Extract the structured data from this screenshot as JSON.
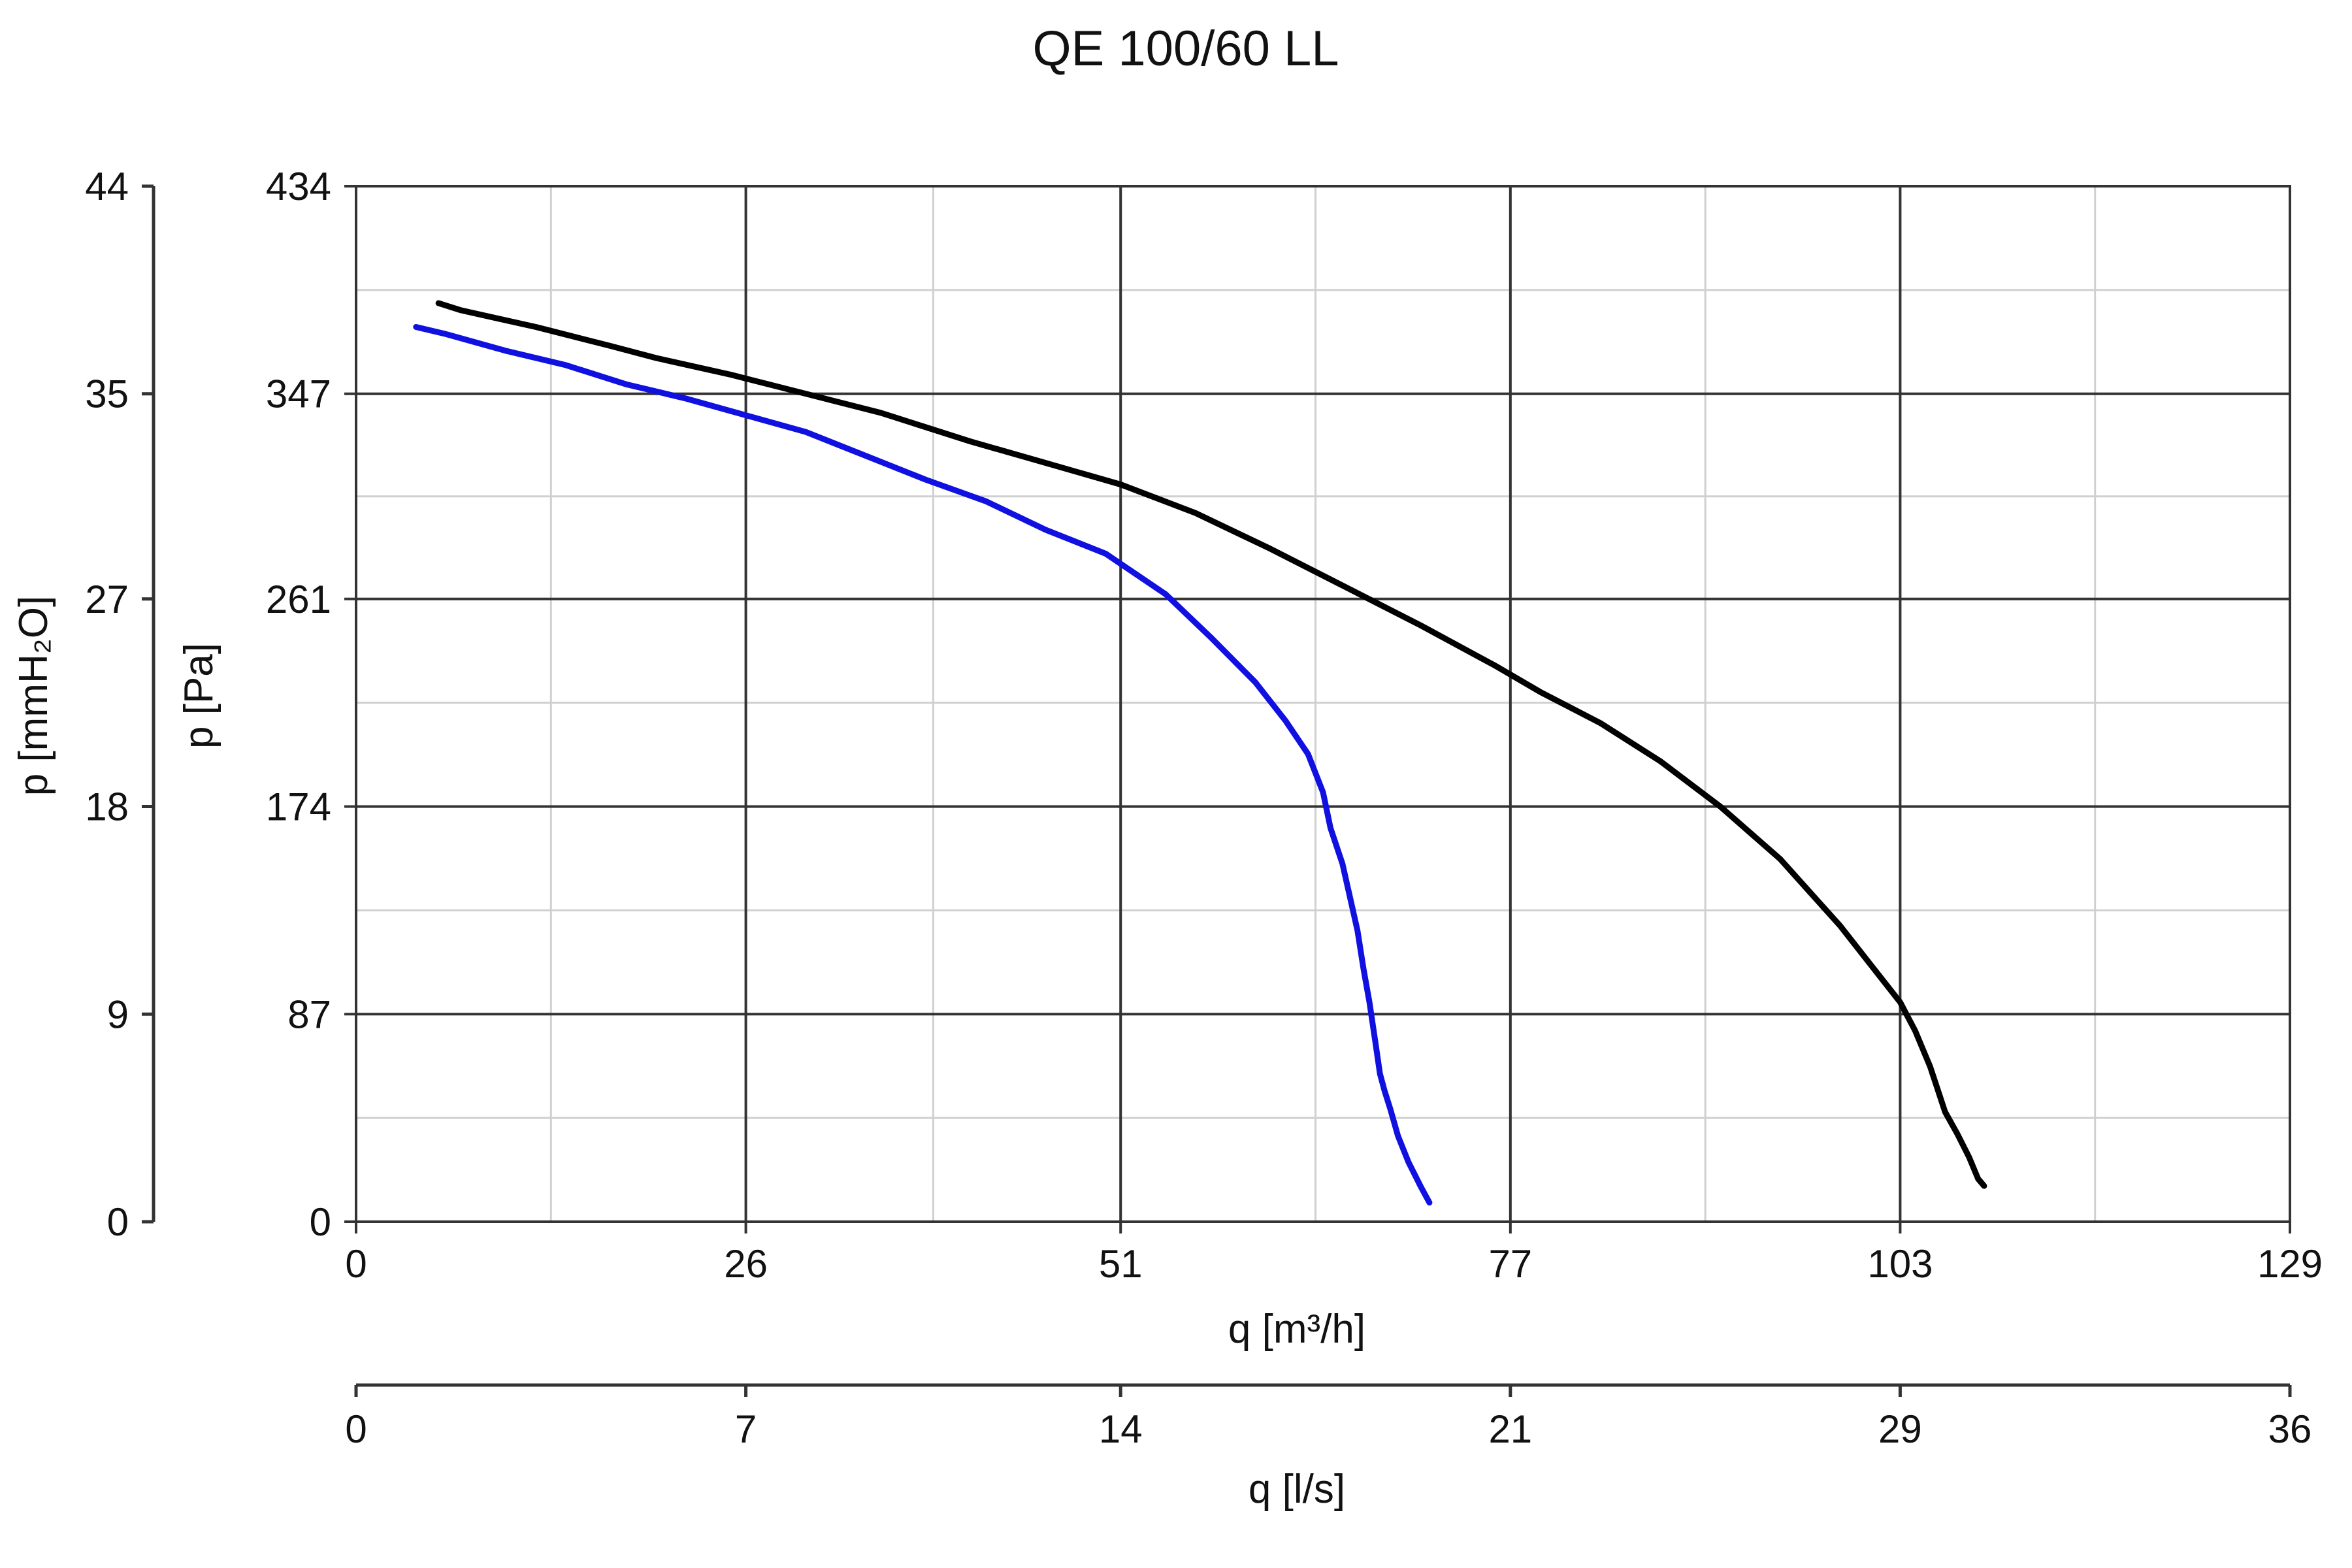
{
  "chart_data": {
    "type": "line",
    "title": "QE 100/60 LL",
    "x_primary": {
      "label": "q [m³/h]",
      "range": [
        0,
        129
      ],
      "ticks": [
        0,
        26,
        51,
        77,
        103,
        129
      ]
    },
    "x_secondary": {
      "label": "q [l/s]",
      "range": [
        0,
        36
      ],
      "ticks": [
        "0",
        "7",
        "14",
        "21",
        "29",
        "36"
      ]
    },
    "y_primary": {
      "label": "p [Pa]",
      "range": [
        0,
        434
      ],
      "ticks": [
        0,
        87,
        174,
        261,
        347,
        434
      ]
    },
    "y_secondary": {
      "label": "p [mmH₂O]",
      "range": [
        0,
        44
      ],
      "ticks": [
        "0",
        "9",
        "18",
        "27",
        "35",
        "44"
      ]
    },
    "grid": true,
    "colors": {
      "series_black": "#000000",
      "series_blue": "#1010e0",
      "grid_major": "#333333",
      "grid_minor": "#d0d0d0"
    },
    "series": [
      {
        "color": "#000000",
        "x": [
          5.5,
          7,
          12,
          17,
          20,
          25,
          30,
          35,
          41,
          46,
          51,
          56,
          61,
          66,
          71,
          76,
          79,
          83,
          87,
          91,
          95,
          99,
          101,
          103,
          104,
          105,
          106,
          106.8,
          107.6,
          108.2,
          108.6
        ],
        "y": [
          385,
          382,
          375,
          367,
          362,
          355,
          347,
          339,
          327,
          318,
          309,
          297,
          282,
          266,
          250,
          233,
          222,
          209,
          193,
          174,
          152,
          124,
          108,
          92,
          80,
          65,
          46,
          37,
          27,
          18,
          15
        ]
      },
      {
        "color": "#1010e0",
        "x": [
          4,
          6,
          10,
          14,
          18,
          22,
          26,
          30,
          34,
          38,
          42,
          46,
          50,
          54,
          57,
          60,
          62,
          63.5,
          64.5,
          65,
          65.8,
          66.3,
          66.8,
          67.2,
          67.6,
          68,
          68.3,
          68.6,
          69,
          69.5,
          70.2,
          71,
          71.6
        ],
        "y": [
          375,
          372,
          365,
          359,
          351,
          345,
          338,
          331,
          321,
          311,
          302,
          290,
          280,
          263,
          245,
          226,
          210,
          196,
          180,
          165,
          150,
          136,
          122,
          106,
          92,
          75,
          62,
          55,
          47,
          36,
          25,
          15,
          8
        ]
      }
    ]
  }
}
